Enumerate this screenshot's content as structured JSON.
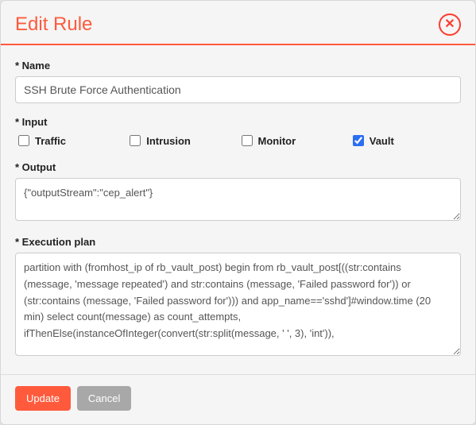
{
  "colors": {
    "accent": "#ff5a3c",
    "close_border": "#ff3b2e",
    "modal_bg": "#f5f5f5",
    "border": "#d7d7d7",
    "button_secondary": "#a8a8a8",
    "checkbox_accent": "#2b6ef2"
  },
  "header": {
    "title": "Edit Rule",
    "close_glyph": "✕"
  },
  "form": {
    "name": {
      "label": "* Name",
      "value": "SSH Brute Force Authentication"
    },
    "input": {
      "label": "* Input",
      "options": [
        {
          "key": "traffic",
          "label": "Traffic",
          "checked": false
        },
        {
          "key": "intrusion",
          "label": "Intrusion",
          "checked": false
        },
        {
          "key": "monitor",
          "label": "Monitor",
          "checked": false
        },
        {
          "key": "vault",
          "label": "Vault",
          "checked": true
        }
      ]
    },
    "output": {
      "label": "* Output",
      "value": "{\"outputStream\":\"cep_alert\"}"
    },
    "execution_plan": {
      "label": "* Execution plan",
      "value": "partition with (fromhost_ip of rb_vault_post) begin from rb_vault_post[((str:contains (message, 'message repeated') and str:contains (message, 'Failed password for')) or (str:contains (message, 'Failed password for'))) and app_name=='sshd']#window.time (20 min) select count(message) as count_attempts, ifThenElse(instanceOfInteger(convert(str:split(message, ' ', 3), 'int')),"
    }
  },
  "footer": {
    "update_label": "Update",
    "cancel_label": "Cancel"
  }
}
